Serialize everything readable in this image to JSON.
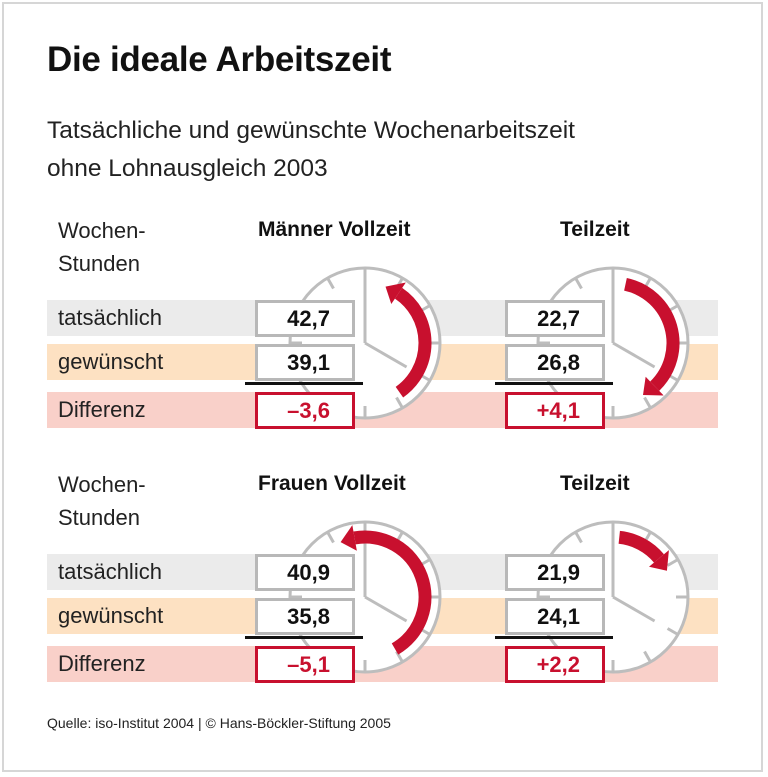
{
  "title": "Die ideale Arbeitszeit",
  "subtitle_line1": "Tatsächliche und gewünschte Wochenarbeitszeit",
  "subtitle_line2": "ohne Lohnausgleich 2003",
  "row_header_line1": "Wochen-",
  "row_header_line2": "Stunden",
  "row_labels": [
    "tatsächlich",
    "gewünscht",
    "Differenz"
  ],
  "source": "Quelle: iso-Institut 2004 | © Hans-Böckler-Stiftung 2005",
  "colors": {
    "accent_red": "#c8102e",
    "band_actual": "#ebebeb",
    "band_desired": "#fde1c2",
    "band_difference": "#f9d0c9",
    "box_border": "#b8b8b8",
    "clock_gray": "#bdbdbd"
  },
  "chart_data": {
    "type": "table",
    "groups": [
      {
        "heading": "Männer Vollzeit",
        "tatsaechlich": "42,7",
        "gewuenscht": "39,1",
        "differenz": "–3,6"
      },
      {
        "heading": "Teilzeit",
        "tatsaechlich": "22,7",
        "gewuenscht": "26,8",
        "differenz": "+4,1"
      },
      {
        "heading": "Frauen Vollzeit",
        "tatsaechlich": "40,9",
        "gewuenscht": "35,8",
        "differenz": "–5,1"
      },
      {
        "heading": "Teilzeit",
        "tatsaechlich": "21,9",
        "gewuenscht": "24,1",
        "differenz": "+2,2"
      }
    ],
    "icon": "clock-icon"
  }
}
